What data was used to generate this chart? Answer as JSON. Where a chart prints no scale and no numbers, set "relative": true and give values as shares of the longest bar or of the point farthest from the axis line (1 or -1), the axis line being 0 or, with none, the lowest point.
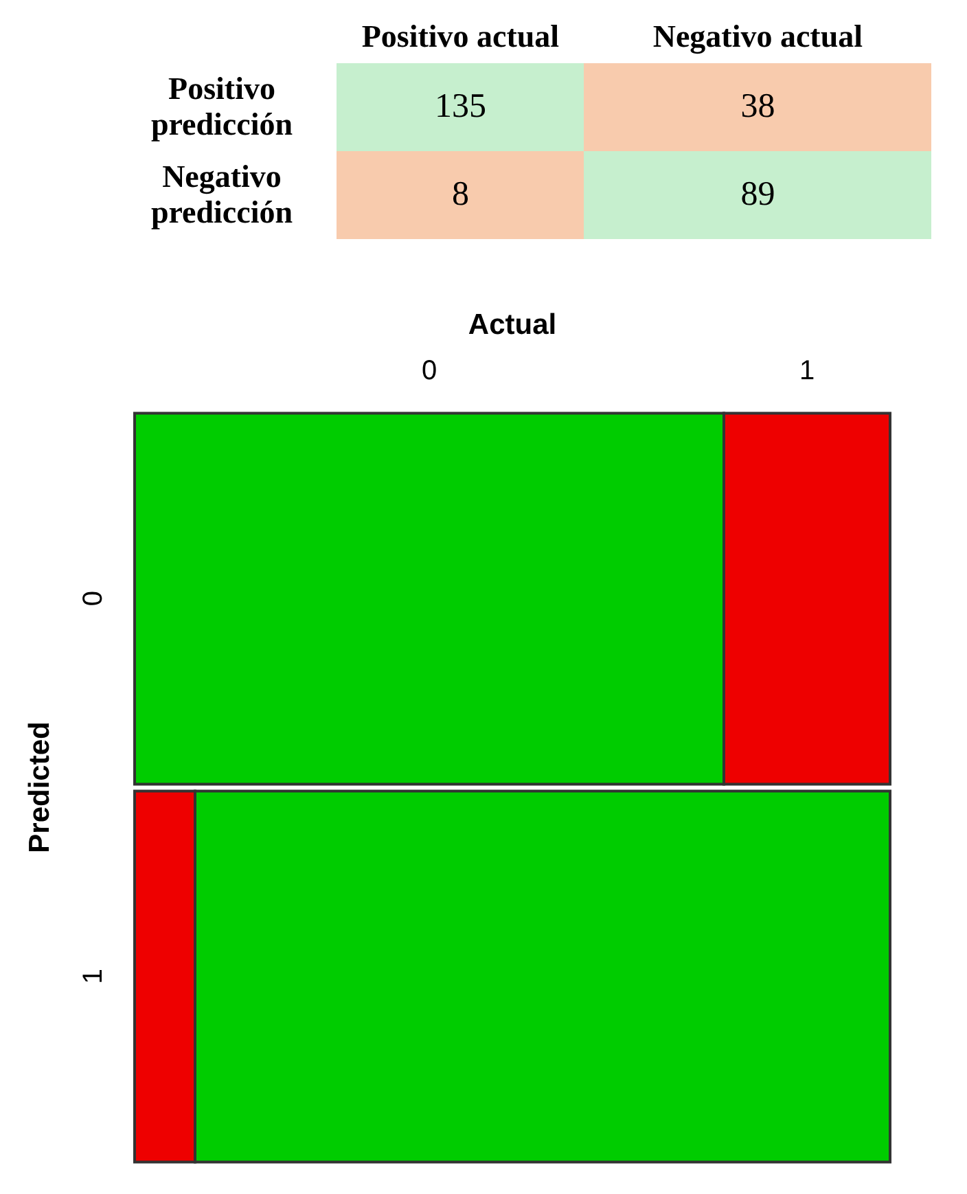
{
  "chart_data": [
    {
      "type": "heatmap",
      "categories": [
        "Positivo actual",
        "Negativo actual"
      ],
      "y_categories": [
        "Positivo predicción",
        "Negativo predicción"
      ],
      "cells": [
        [
          135,
          38
        ],
        [
          8,
          89
        ]
      ],
      "colors": [
        [
          "#c6efce",
          "#f8cbad"
        ],
        [
          "#f8cbad",
          "#c6efce"
        ]
      ],
      "data_labels": true
    },
    {
      "type": "bar",
      "orientation": "horizontal",
      "stacked": true,
      "relative": true,
      "xlabel": "Actual",
      "ylabel": "Predicted",
      "categories": [
        "0",
        "1"
      ],
      "series": [
        {
          "name": "0",
          "colors": [
            "#00cc00",
            "#ee0000"
          ],
          "values": [
            0.78,
            0.08
          ]
        },
        {
          "name": "1",
          "colors": [
            "#ee0000",
            "#00cc00"
          ],
          "values": [
            0.22,
            0.92
          ]
        }
      ]
    }
  ]
}
